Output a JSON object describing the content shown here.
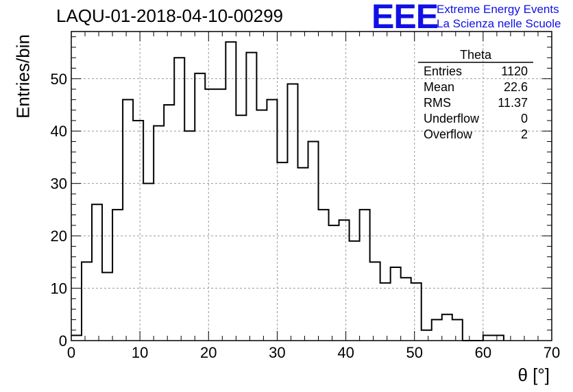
{
  "title": "LAQU-01-2018-04-10-00299",
  "logo": {
    "mark": "EEE",
    "line1": "Extreme Energy Events",
    "line2": "La Scienza nelle Scuole",
    "color": "#1010e6"
  },
  "stats": {
    "name": "Theta",
    "rows": [
      {
        "label": "Entries",
        "value": "1120"
      },
      {
        "label": "Mean",
        "value": "22.6"
      },
      {
        "label": "RMS",
        "value": "11.37"
      },
      {
        "label": "Underflow",
        "value": "0"
      },
      {
        "label": "Overflow",
        "value": "2"
      }
    ]
  },
  "chart_data": {
    "type": "bar",
    "style": "step-histogram",
    "title": "LAQU-01-2018-04-10-00299",
    "xlabel": "θ [°]",
    "ylabel": "Entries/bin",
    "xlim": [
      0,
      70
    ],
    "ylim": [
      0,
      59
    ],
    "bin_start": 0,
    "bin_width": 1.5,
    "values": [
      1,
      15,
      26,
      13,
      25,
      46,
      42,
      30,
      41,
      45,
      54,
      40,
      51,
      48,
      48,
      57,
      43,
      55,
      44,
      46,
      34,
      49,
      33,
      38,
      25,
      22,
      23,
      19,
      25,
      15,
      11,
      14,
      12,
      11,
      2,
      4,
      5,
      4,
      0,
      0,
      1,
      1
    ],
    "xticks": [
      0,
      10,
      20,
      30,
      40,
      50,
      60,
      70
    ],
    "yticks": [
      0,
      10,
      20,
      30,
      40,
      50
    ],
    "grid": true
  }
}
